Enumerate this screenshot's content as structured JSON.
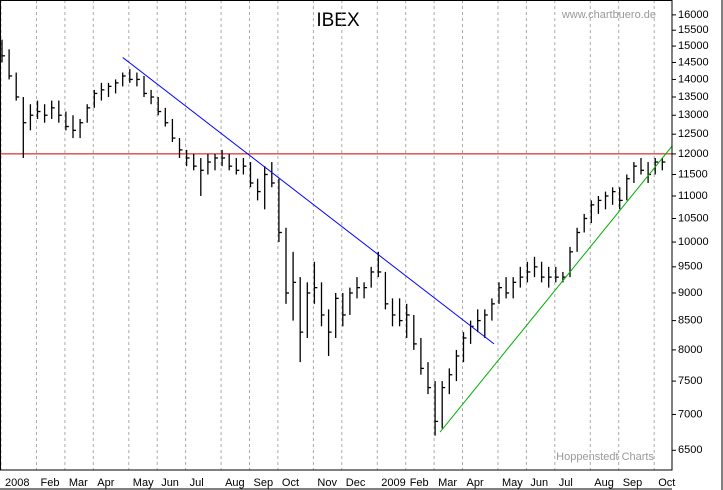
{
  "chart_data": {
    "type": "ohlc",
    "title": "IBEX",
    "source": "www.chartbuero.de",
    "credit": "Hoppenstedt Charts",
    "categories": [
      "2008",
      null,
      null,
      null,
      null,
      "Feb",
      null,
      null,
      null,
      "Mar",
      null,
      null,
      null,
      "Apr",
      null,
      null,
      null,
      null,
      "May",
      null,
      null,
      null,
      "Jun",
      null,
      null,
      null,
      "Jul",
      null,
      null,
      null,
      null,
      "Aug",
      null,
      null,
      null,
      "Sep",
      null,
      null,
      null,
      "Oct",
      null,
      null,
      null,
      null,
      "Nov",
      null,
      null,
      null,
      "Dec",
      null,
      null,
      null,
      null,
      "2009",
      null,
      null,
      null,
      "Feb",
      null,
      null,
      null,
      "Mar",
      null,
      null,
      null,
      "Apr",
      null,
      null,
      null,
      null,
      "May",
      null,
      null,
      null,
      "Jun",
      null,
      null,
      null,
      "Jul",
      null,
      null,
      null,
      null,
      "Aug",
      null,
      null,
      null,
      "Sep",
      null,
      null,
      null,
      null,
      "Oct",
      null
    ],
    "high": [
      15200,
      14900,
      14200,
      13500,
      13300,
      13400,
      13300,
      13400,
      13400,
      13100,
      13000,
      12900,
      13300,
      13700,
      13900,
      13900,
      14000,
      14200,
      14300,
      14200,
      14100,
      13700,
      13500,
      13200,
      12900,
      12400,
      12100,
      12000,
      11900,
      12000,
      12000,
      12100,
      12000,
      11900,
      11900,
      11800,
      11400,
      11700,
      11800,
      11400,
      10300,
      9800,
      9300,
      9200,
      9600,
      9200,
      8700,
      9000,
      9000,
      9100,
      9300,
      9200,
      9500,
      9800,
      9400,
      8900,
      8900,
      8800,
      8600,
      8200,
      7800,
      7500,
      7500,
      7700,
      8000,
      8300,
      8500,
      8700,
      8700,
      8900,
      9200,
      9300,
      9300,
      9500,
      9600,
      9700,
      9600,
      9500,
      9500,
      9400,
      9900,
      10300,
      10600,
      10900,
      11000,
      11100,
      11200,
      11200,
      11500,
      11800,
      11900,
      11800,
      11900,
      11900
    ],
    "low": [
      14500,
      14000,
      13400,
      11900,
      12600,
      12900,
      12800,
      12900,
      12800,
      12600,
      12400,
      12400,
      12800,
      13200,
      13400,
      13500,
      13600,
      13800,
      13900,
      13800,
      13500,
      13300,
      13000,
      12700,
      12300,
      11900,
      11700,
      11600,
      11000,
      11500,
      11600,
      11700,
      11600,
      11500,
      11500,
      11200,
      10900,
      10700,
      11200,
      10000,
      8800,
      8500,
      7800,
      8200,
      8800,
      8400,
      7900,
      8200,
      8400,
      8600,
      8900,
      8900,
      9100,
      9300,
      8700,
      8400,
      8400,
      8200,
      8000,
      7600,
      7300,
      6700,
      6800,
      7300,
      7500,
      7800,
      8100,
      8300,
      8200,
      8500,
      8800,
      8900,
      8900,
      9100,
      9200,
      9300,
      9200,
      9100,
      9200,
      9200,
      9300,
      9800,
      10200,
      10400,
      10600,
      10700,
      10800,
      10700,
      10900,
      11300,
      11500,
      11300,
      11500,
      11600
    ],
    "close": [
      14700,
      14100,
      13500,
      12800,
      13000,
      13100,
      13000,
      13200,
      13000,
      12700,
      12600,
      12800,
      13200,
      13600,
      13700,
      13800,
      13900,
      14100,
      14000,
      14000,
      13600,
      13500,
      13100,
      12800,
      12400,
      12100,
      11900,
      11700,
      11600,
      11800,
      11900,
      11900,
      11700,
      11600,
      11700,
      11300,
      11100,
      11500,
      11300,
      10200,
      9000,
      9200,
      8300,
      9000,
      9100,
      8600,
      8300,
      8900,
      8600,
      9000,
      9100,
      9100,
      9400,
      9400,
      8800,
      8600,
      8500,
      8600,
      8100,
      7700,
      7400,
      6900,
      7400,
      7600,
      7900,
      8200,
      8400,
      8500,
      8600,
      8800,
      9100,
      9000,
      9200,
      9300,
      9400,
      9500,
      9300,
      9300,
      9300,
      9300,
      9800,
      10200,
      10500,
      10800,
      10900,
      11000,
      11100,
      10900,
      11400,
      11700,
      11600,
      11500,
      11800,
      11800
    ],
    "trendlines": [
      {
        "color": "#0000ff",
        "x": [
          17,
          69.3
        ],
        "values": [
          14650,
          8100
        ]
      },
      {
        "color": "#00b000",
        "x": [
          61.7,
          94.4
        ],
        "values": [
          6750,
          12200
        ]
      }
    ],
    "hline": {
      "color": "#cc0000",
      "value": 12000
    },
    "color": "#000000",
    "log": true,
    "ylim": [
      6240,
      16500
    ],
    "yticks": [
      6500,
      7000,
      7500,
      8000,
      8500,
      9000,
      9500,
      10000,
      10500,
      11000,
      11500,
      12000,
      12500,
      13000,
      13500,
      14000,
      14500,
      15000,
      15500,
      16000
    ]
  }
}
